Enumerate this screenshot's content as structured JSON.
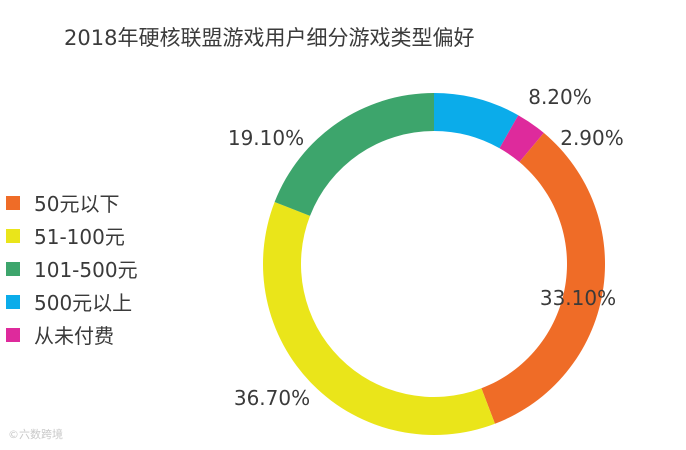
{
  "chart_data": {
    "type": "pie",
    "title": "2018年硬核联盟游戏用户细分游戏类型偏好",
    "categories": [
      "50元以下",
      "51-100元",
      "101-500元",
      "500元以上",
      "从未付费"
    ],
    "values": [
      33.1,
      36.7,
      19.1,
      8.2,
      2.9
    ],
    "value_labels": [
      "33.10%",
      "36.70%",
      "19.10%",
      "8.20%",
      "2.90%"
    ],
    "colors": [
      "#ef6c27",
      "#eae51a",
      "#3da56c",
      "#0bacea",
      "#de2a9c"
    ],
    "legend_position": "left",
    "style": "donut"
  },
  "watermark": "©六数跨境"
}
